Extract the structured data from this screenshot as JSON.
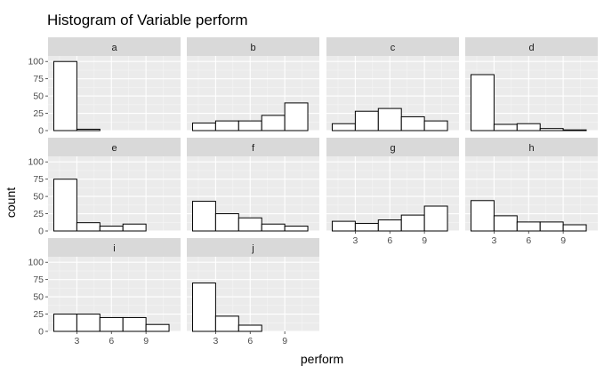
{
  "chart_data": {
    "type": "bar",
    "title": "Histogram of Variable perform",
    "xlabel": "perform",
    "ylabel": "count",
    "xlim": [
      0.5,
      12
    ],
    "ylim": [
      0,
      108
    ],
    "xticks": [
      3,
      6,
      9
    ],
    "yticks": [
      0,
      25,
      50,
      75,
      100
    ],
    "bin_edges": [
      1,
      3,
      5,
      7,
      9,
      11
    ],
    "grid": true,
    "panels": [
      {
        "name": "a",
        "values": [
          100,
          2,
          0,
          0,
          0
        ]
      },
      {
        "name": "b",
        "values": [
          11,
          14,
          14,
          22,
          40
        ]
      },
      {
        "name": "c",
        "values": [
          10,
          28,
          32,
          20,
          14
        ]
      },
      {
        "name": "d",
        "values": [
          81,
          9,
          10,
          3,
          1
        ]
      },
      {
        "name": "e",
        "values": [
          75,
          12,
          7,
          10,
          0
        ]
      },
      {
        "name": "f",
        "values": [
          43,
          25,
          19,
          10,
          7
        ]
      },
      {
        "name": "g",
        "values": [
          14,
          11,
          16,
          23,
          36
        ]
      },
      {
        "name": "h",
        "values": [
          44,
          22,
          13,
          13,
          9
        ]
      },
      {
        "name": "i",
        "values": [
          25,
          25,
          20,
          20,
          10
        ]
      },
      {
        "name": "j",
        "values": [
          70,
          22,
          9,
          0,
          0
        ]
      }
    ]
  }
}
